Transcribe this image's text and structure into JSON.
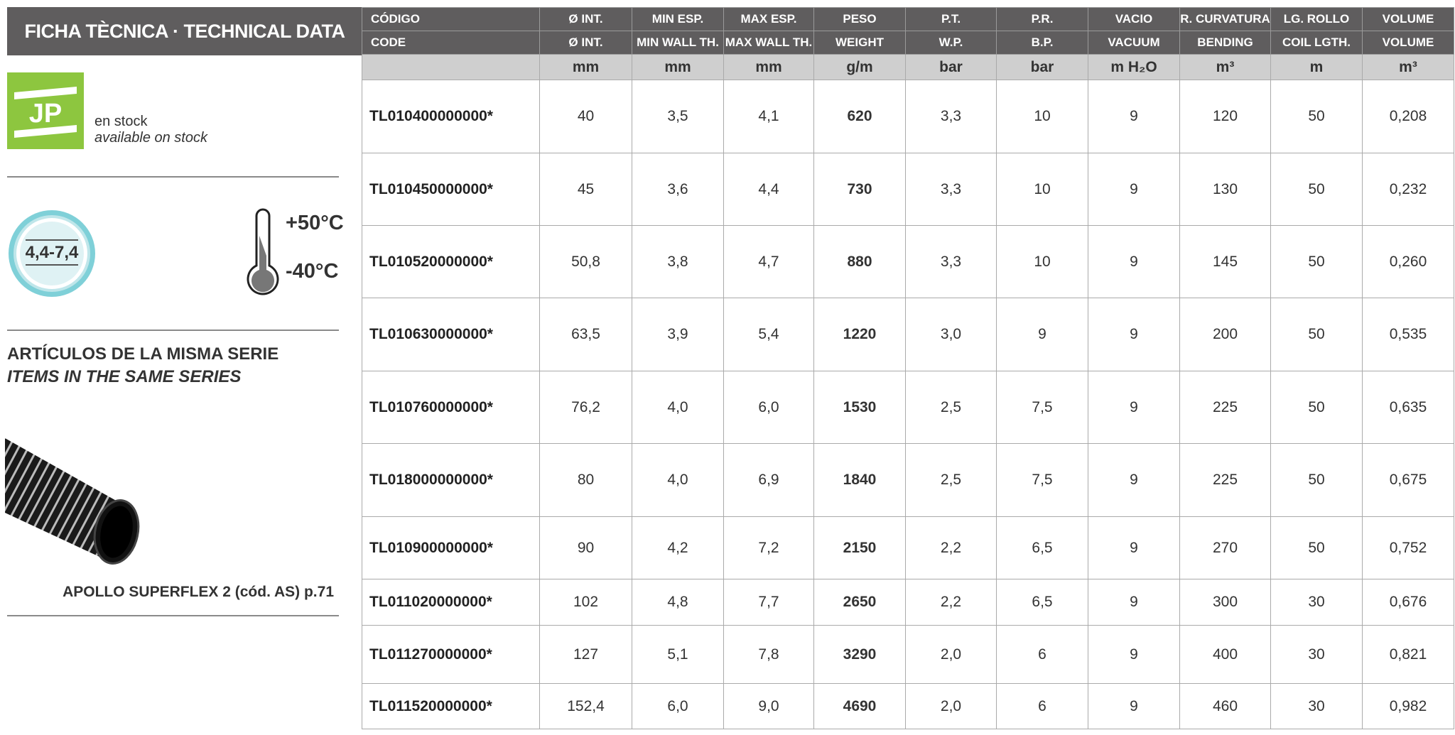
{
  "title": "FICHA TÈCNICA · TECHNICAL DATA",
  "stock": {
    "logo_text": "JP",
    "label": "en stock",
    "label_en": "available on stock",
    "logo_color": "#8dc63f"
  },
  "wall_thickness_badge": "4,4-7,4",
  "temperature": {
    "max": "+50°C",
    "min": "-40°C"
  },
  "series": {
    "title": "ARTÍCULOS DE LA MISMA SERIE",
    "title_en": "ITEMS IN THE SAME SERIES",
    "caption": "APOLLO SUPERFLEX 2  (cód. AS) p.71"
  },
  "table": {
    "header_es": [
      "CÓDIGO",
      "Ø INT.",
      "MIN ESP.",
      "MAX ESP.",
      "PESO",
      "P.T.",
      "P.R.",
      "VACIO",
      "R. CURVATURA",
      "LG. ROLLO",
      "VOLUME"
    ],
    "header_en": [
      "CODE",
      "Ø INT.",
      "MIN WALL TH.",
      "MAX WALL TH.",
      "WEIGHT",
      "W.P.",
      "B.P.",
      "VACUUM",
      "BENDING",
      "COIL LGTH.",
      "VOLUME"
    ],
    "units": [
      "",
      "mm",
      "mm",
      "mm",
      "g/m",
      "bar",
      "bar",
      "m H₂O",
      "m³",
      "m",
      "m³"
    ],
    "rows": [
      [
        "TL010400000000*",
        "40",
        "3,5",
        "4,1",
        "620",
        "3,3",
        "10",
        "9",
        "120",
        "50",
        "0,208"
      ],
      [
        "TL010450000000*",
        "45",
        "3,6",
        "4,4",
        "730",
        "3,3",
        "10",
        "9",
        "130",
        "50",
        "0,232"
      ],
      [
        "TL010520000000*",
        "50,8",
        "3,8",
        "4,7",
        "880",
        "3,3",
        "10",
        "9",
        "145",
        "50",
        "0,260"
      ],
      [
        "TL010630000000*",
        "63,5",
        "3,9",
        "5,4",
        "1220",
        "3,0",
        "9",
        "9",
        "200",
        "50",
        "0,535"
      ],
      [
        "TL010760000000*",
        "76,2",
        "4,0",
        "6,0",
        "1530",
        "2,5",
        "7,5",
        "9",
        "225",
        "50",
        "0,635"
      ],
      [
        "TL018000000000*",
        "80",
        "4,0",
        "6,9",
        "1840",
        "2,5",
        "7,5",
        "9",
        "225",
        "50",
        "0,675"
      ],
      [
        "TL010900000000*",
        "90",
        "4,2",
        "7,2",
        "2150",
        "2,2",
        "6,5",
        "9",
        "270",
        "50",
        "0,752"
      ],
      [
        "TL011020000000*",
        "102",
        "4,8",
        "7,7",
        "2650",
        "2,2",
        "6,5",
        "9",
        "300",
        "30",
        "0,676"
      ],
      [
        "TL011270000000*",
        "127",
        "5,1",
        "7,8",
        "3290",
        "2,0",
        "6",
        "9",
        "400",
        "30",
        "0,821"
      ],
      [
        "TL011520000000*",
        "152,4",
        "6,0",
        "9,0",
        "4690",
        "2,0",
        "6",
        "9",
        "460",
        "30",
        "0,982"
      ]
    ]
  }
}
